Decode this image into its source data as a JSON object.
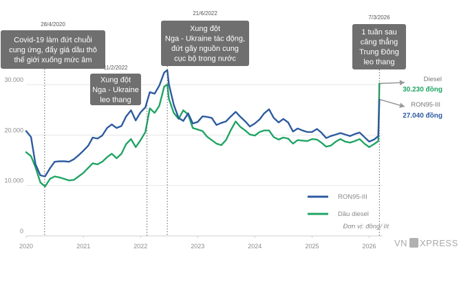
{
  "chart_data": {
    "type": "line",
    "title": "",
    "xlabel": "",
    "ylabel": "",
    "unit_note": "Đơn vị: đồng/ lít",
    "x_ticks": [
      "2020",
      "2021",
      "2022",
      "2023",
      "2024",
      "2025",
      "2026"
    ],
    "y_ticks": [
      "0",
      "10.000",
      "20.000",
      "30.000"
    ],
    "ylim": [
      0,
      33000
    ],
    "grid": true,
    "legend_position": "bottom-right",
    "series": [
      {
        "name": "RON95-III",
        "color": "#2c5aa0",
        "points": [
          [
            "2020-01-01",
            20800
          ],
          [
            "2020-02-01",
            19600
          ],
          [
            "2020-03-01",
            14200
          ],
          [
            "2020-04-01",
            12000
          ],
          [
            "2020-05-01",
            11800
          ],
          [
            "2020-06-01",
            13400
          ],
          [
            "2020-07-01",
            14700
          ],
          [
            "2020-08-01",
            14800
          ],
          [
            "2020-09-01",
            14800
          ],
          [
            "2020-10-01",
            14700
          ],
          [
            "2020-11-01",
            15200
          ],
          [
            "2020-12-01",
            16000
          ],
          [
            "2021-01-01",
            16900
          ],
          [
            "2021-02-01",
            17900
          ],
          [
            "2021-03-01",
            19500
          ],
          [
            "2021-04-01",
            19300
          ],
          [
            "2021-05-01",
            19900
          ],
          [
            "2021-06-01",
            21400
          ],
          [
            "2021-07-01",
            22100
          ],
          [
            "2021-08-01",
            21400
          ],
          [
            "2021-09-01",
            21800
          ],
          [
            "2021-10-01",
            23700
          ],
          [
            "2021-11-01",
            24900
          ],
          [
            "2021-12-01",
            22900
          ],
          [
            "2022-01-01",
            24500
          ],
          [
            "2022-02-01",
            25500
          ],
          [
            "2022-03-01",
            28500
          ],
          [
            "2022-04-01",
            28200
          ],
          [
            "2022-05-01",
            29800
          ],
          [
            "2022-06-01",
            32400
          ],
          [
            "2022-06-21",
            32870
          ],
          [
            "2022-07-01",
            30100
          ],
          [
            "2022-08-01",
            26000
          ],
          [
            "2022-09-01",
            23400
          ],
          [
            "2022-10-01",
            22800
          ],
          [
            "2022-11-01",
            24300
          ],
          [
            "2022-12-01",
            22300
          ],
          [
            "2023-01-01",
            22600
          ],
          [
            "2023-02-01",
            23700
          ],
          [
            "2023-03-01",
            23600
          ],
          [
            "2023-04-01",
            23400
          ],
          [
            "2023-05-01",
            22000
          ],
          [
            "2023-06-01",
            22400
          ],
          [
            "2023-07-01",
            22700
          ],
          [
            "2023-08-01",
            23700
          ],
          [
            "2023-09-01",
            24600
          ],
          [
            "2023-10-01",
            23600
          ],
          [
            "2023-11-01",
            22700
          ],
          [
            "2023-12-01",
            21700
          ],
          [
            "2024-01-01",
            22300
          ],
          [
            "2024-02-01",
            23100
          ],
          [
            "2024-03-01",
            24300
          ],
          [
            "2024-04-01",
            25100
          ],
          [
            "2024-05-01",
            23400
          ],
          [
            "2024-06-01",
            22500
          ],
          [
            "2024-07-01",
            23200
          ],
          [
            "2024-08-01",
            22500
          ],
          [
            "2024-09-01",
            20700
          ],
          [
            "2024-10-01",
            21300
          ],
          [
            "2024-11-01",
            20900
          ],
          [
            "2024-12-01",
            20600
          ],
          [
            "2025-01-01",
            20600
          ],
          [
            "2025-02-01",
            21200
          ],
          [
            "2025-03-01",
            20500
          ],
          [
            "2025-04-01",
            19400
          ],
          [
            "2025-05-01",
            19800
          ],
          [
            "2025-06-01",
            20100
          ],
          [
            "2025-07-01",
            20400
          ],
          [
            "2025-08-01",
            20100
          ],
          [
            "2025-09-01",
            19800
          ],
          [
            "2025-10-01",
            20200
          ],
          [
            "2025-11-01",
            20500
          ],
          [
            "2025-12-01",
            19600
          ],
          [
            "2026-01-01",
            18700
          ],
          [
            "2026-02-01",
            19100
          ],
          [
            "2026-02-28",
            19800
          ],
          [
            "2026-03-07",
            27040
          ]
        ]
      },
      {
        "name": "Dầu diesel",
        "color": "#1fa463",
        "points": [
          [
            "2020-01-01",
            16600
          ],
          [
            "2020-02-01",
            15800
          ],
          [
            "2020-03-01",
            13600
          ],
          [
            "2020-04-01",
            10600
          ],
          [
            "2020-05-01",
            9800
          ],
          [
            "2020-06-01",
            11300
          ],
          [
            "2020-07-01",
            11800
          ],
          [
            "2020-08-01",
            11600
          ],
          [
            "2020-09-01",
            11300
          ],
          [
            "2020-10-01",
            11000
          ],
          [
            "2020-11-01",
            11100
          ],
          [
            "2020-12-01",
            11800
          ],
          [
            "2021-01-01",
            12500
          ],
          [
            "2021-02-01",
            13500
          ],
          [
            "2021-03-01",
            14400
          ],
          [
            "2021-04-01",
            14200
          ],
          [
            "2021-05-01",
            14700
          ],
          [
            "2021-06-01",
            15600
          ],
          [
            "2021-07-01",
            16300
          ],
          [
            "2021-08-01",
            15400
          ],
          [
            "2021-09-01",
            16300
          ],
          [
            "2021-10-01",
            18200
          ],
          [
            "2021-11-01",
            19200
          ],
          [
            "2021-12-01",
            17600
          ],
          [
            "2022-01-01",
            19000
          ],
          [
            "2022-02-01",
            20600
          ],
          [
            "2022-03-01",
            25300
          ],
          [
            "2022-04-01",
            24400
          ],
          [
            "2022-05-01",
            25800
          ],
          [
            "2022-06-01",
            29600
          ],
          [
            "2022-06-21",
            30010
          ],
          [
            "2022-07-01",
            27200
          ],
          [
            "2022-08-01",
            24400
          ],
          [
            "2022-09-01",
            23200
          ],
          [
            "2022-10-01",
            24900
          ],
          [
            "2022-11-01",
            24100
          ],
          [
            "2022-12-01",
            21400
          ],
          [
            "2023-01-01",
            21100
          ],
          [
            "2023-02-01",
            20800
          ],
          [
            "2023-03-01",
            19700
          ],
          [
            "2023-04-01",
            19000
          ],
          [
            "2023-05-01",
            18300
          ],
          [
            "2023-06-01",
            18000
          ],
          [
            "2023-07-01",
            19000
          ],
          [
            "2023-08-01",
            21000
          ],
          [
            "2023-09-01",
            22700
          ],
          [
            "2023-10-01",
            21600
          ],
          [
            "2023-11-01",
            20900
          ],
          [
            "2023-12-01",
            20100
          ],
          [
            "2024-01-01",
            19900
          ],
          [
            "2024-02-01",
            20600
          ],
          [
            "2024-03-01",
            20900
          ],
          [
            "2024-04-01",
            20900
          ],
          [
            "2024-05-01",
            19600
          ],
          [
            "2024-06-01",
            19100
          ],
          [
            "2024-07-01",
            19500
          ],
          [
            "2024-08-01",
            19300
          ],
          [
            "2024-09-01",
            18300
          ],
          [
            "2024-10-01",
            19000
          ],
          [
            "2024-11-01",
            18900
          ],
          [
            "2024-12-01",
            18800
          ],
          [
            "2025-01-01",
            19200
          ],
          [
            "2025-02-01",
            19100
          ],
          [
            "2025-03-01",
            18500
          ],
          [
            "2025-04-01",
            17700
          ],
          [
            "2025-05-01",
            17900
          ],
          [
            "2025-06-01",
            18700
          ],
          [
            "2025-07-01",
            19200
          ],
          [
            "2025-08-01",
            18700
          ],
          [
            "2025-09-01",
            18500
          ],
          [
            "2025-10-01",
            18800
          ],
          [
            "2025-11-01",
            19200
          ],
          [
            "2025-12-01",
            18300
          ],
          [
            "2026-01-01",
            17600
          ],
          [
            "2026-02-01",
            18200
          ],
          [
            "2026-02-28",
            18800
          ],
          [
            "2026-03-07",
            30230
          ]
        ]
      }
    ],
    "annotations": [
      {
        "date": "2020-04-28",
        "date_label": "28/4/2020",
        "lines": [
          "Covid-19 làm đứt chuỗi",
          "cung ứng, đẩy giá dầu thô",
          "thế giới xuống mức âm"
        ]
      },
      {
        "date": "2022-02-11",
        "date_label": "11/2/2022",
        "lines": [
          "Xung đột",
          "Nga - Ukraine",
          "leo thang"
        ]
      },
      {
        "date": "2022-06-21",
        "date_label": "21/6/2022",
        "lines": [
          "Xung đột",
          "Nga - Ukraine tác động,",
          "đứt gãy nguồn cung",
          "cục bộ trong nước"
        ]
      },
      {
        "date": "2026-03-07",
        "date_label": "7/3/2026",
        "lines": [
          "1 tuần sau",
          "căng thẳng",
          "Trung Đông",
          "leo thang"
        ]
      }
    ],
    "end_labels": [
      {
        "name": "Diesel",
        "value": "30.230 đồng",
        "color": "#1fa463"
      },
      {
        "name": "RON95-III",
        "value": "27.040 đồng",
        "color": "#2c5aa0"
      }
    ]
  },
  "branding": {
    "logo_left": "VN",
    "logo_right": "XPRESS"
  }
}
